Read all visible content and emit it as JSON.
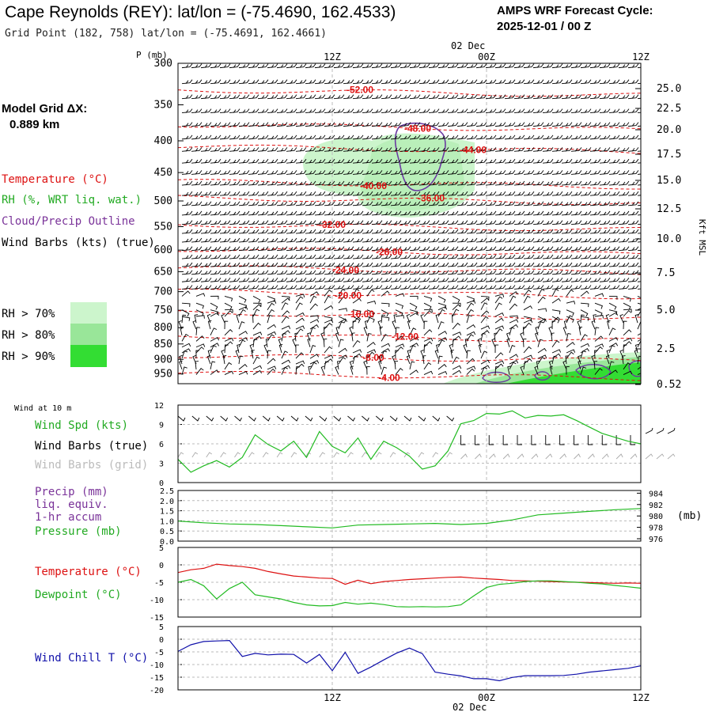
{
  "header": {
    "station_title": "Cape Reynolds (REY):  lat/lon = (-75.4690, 162.4533)",
    "grid_point": "Grid Point (182, 758) lat/lon = (-75.4691, 162.4661)",
    "forecast_title": "AMPS WRF Forecast Cycle:",
    "forecast_cycle": "2025-12-01 / 00  Z"
  },
  "left_panel": {
    "model_grid_label": "Model Grid ΔX:",
    "model_grid_value": "0.889 km",
    "legend": [
      {
        "label": "Temperature (°C)",
        "color": "#dd1111"
      },
      {
        "label": "RH (%, WRT liq. wat.)",
        "color": "#22aa22"
      },
      {
        "label": "Cloud/Precip Outline",
        "color": "#7a3399"
      },
      {
        "label": "Wind Barbs (kts) (true)",
        "color": "#000000"
      }
    ],
    "rh_legend": [
      {
        "label": "RH > 70%",
        "color": "#ccf5cc"
      },
      {
        "label": "RH > 80%",
        "color": "#99e699"
      },
      {
        "label": "RH > 90%",
        "color": "#33dd33"
      }
    ]
  },
  "colors": {
    "temperature": "#dd1111",
    "rh_fill": "#ccf5cc",
    "cloud_outline": "#6a3aa0",
    "wind_speed": "#22bb22",
    "pressure": "#22bb22",
    "dewpoint": "#22bb22",
    "wind_chill": "#1111aa",
    "grid_barbs": "#aaaaaa"
  },
  "chart_data": [
    {
      "type": "area",
      "name": "upper-air-cross-section",
      "pressure_label": "P (mb)",
      "pressure_levels": [
        300,
        350,
        400,
        450,
        500,
        550,
        600,
        650,
        700,
        750,
        800,
        850,
        900,
        950
      ],
      "height_label": "Kft MSL",
      "height_ticks": [
        "25.0",
        "22.5",
        "20.0",
        "17.5",
        "15.0",
        "12.5",
        "10.0",
        "7.5",
        "5.0",
        "2.5",
        "0.52"
      ],
      "time_labels": [
        "12Z",
        "00Z",
        "12Z"
      ],
      "date_label": "02 Dec",
      "isotherm_labels": [
        "-52.00",
        "-48.00",
        "-44.00",
        "-40.00",
        "-36.00",
        "-32.00",
        "-28.00",
        "-24.00",
        "-20.00",
        "-16.00",
        "-12.00",
        "-8.00",
        "-4.00"
      ],
      "isotherm_levels_mb": [
        334,
        380,
        412,
        469,
        498,
        550,
        603,
        645,
        705,
        763,
        830,
        895,
        955
      ]
    },
    {
      "type": "line",
      "name": "wind-10m",
      "title": "Wind at 10 m",
      "legend": [
        "Wind Spd (kts)",
        "Wind Barbs (true)",
        "Wind Barbs (grid)"
      ],
      "yticks": [
        12,
        9,
        6,
        3,
        0
      ],
      "ylim": [
        0,
        12
      ],
      "x_hours": [
        0,
        1,
        2,
        3,
        4,
        5,
        6,
        7,
        8,
        9,
        10,
        11,
        12,
        13,
        14,
        15,
        16,
        17,
        18,
        19,
        20,
        21,
        22,
        23,
        24,
        25,
        26,
        27,
        28,
        29,
        30,
        31,
        32,
        33,
        34,
        35,
        36
      ],
      "wind_speed_kts": [
        3.6,
        1.6,
        2.6,
        3.4,
        2.4,
        3.9,
        7.4,
        5.9,
        4.9,
        6.4,
        3.9,
        7.9,
        5.6,
        4.6,
        6.9,
        3.6,
        6.4,
        5.4,
        4.1,
        2.1,
        2.6,
        4.9,
        9.1,
        9.6,
        10.7,
        10.6,
        11.1,
        10.0,
        10.4,
        10.3,
        10.5,
        9.6,
        8.6,
        7.6,
        7.0,
        6.4,
        6.0
      ]
    },
    {
      "type": "line",
      "name": "precip-pressure",
      "legend": [
        "Precip (mm)",
        "liq. equiv.",
        "1-hr accum",
        "Pressure (mb)"
      ],
      "precip_ticks": [
        "2.5",
        "2.0",
        "1.5",
        "1.0",
        "0.5",
        "0.0"
      ],
      "pressure_ticks": [
        984,
        982,
        980,
        978,
        976
      ],
      "pressure_unit": "(mb)",
      "pressure_lim": [
        976,
        984
      ],
      "x_hours": [
        0,
        2,
        4,
        6,
        8,
        10,
        12,
        14,
        16,
        18,
        20,
        22,
        24,
        26,
        28,
        30,
        32,
        34,
        36
      ],
      "pressure_mb": [
        979.1,
        978.8,
        978.6,
        978.5,
        978.3,
        978.1,
        977.9,
        978.4,
        978.5,
        978.6,
        978.7,
        978.5,
        978.7,
        979.3,
        980.2,
        980.5,
        980.8,
        981.1,
        981.3
      ]
    },
    {
      "type": "line",
      "name": "temperature-dewpoint",
      "legend": [
        "Temperature (°C)",
        "Dewpoint (°C)"
      ],
      "yticks": [
        5,
        0,
        -5,
        -10,
        -15
      ],
      "ylim": [
        -15,
        5
      ],
      "x_hours": [
        0,
        1,
        2,
        3,
        4,
        5,
        6,
        7,
        8,
        9,
        10,
        11,
        12,
        13,
        14,
        15,
        16,
        17,
        18,
        19,
        20,
        21,
        22,
        23,
        24,
        25,
        26,
        27,
        28,
        29,
        30,
        31,
        32,
        33,
        34,
        35,
        36
      ],
      "temperature": [
        -2.2,
        -1.4,
        -1.0,
        0.2,
        -0.2,
        -0.5,
        -1.0,
        -1.9,
        -2.6,
        -3.2,
        -3.5,
        -3.8,
        -3.9,
        -5.6,
        -4.4,
        -5.4,
        -4.8,
        -4.5,
        -4.2,
        -4.0,
        -3.8,
        -3.6,
        -3.5,
        -3.8,
        -4.0,
        -4.2,
        -4.5,
        -4.6,
        -4.7,
        -4.8,
        -4.9,
        -5.0,
        -5.1,
        -5.2,
        -5.3,
        -5.2,
        -5.3
      ],
      "dewpoint": [
        -5.0,
        -4.2,
        -6.0,
        -9.8,
        -6.8,
        -5.0,
        -8.6,
        -9.2,
        -9.8,
        -10.8,
        -11.5,
        -11.8,
        -11.7,
        -10.8,
        -11.3,
        -11.0,
        -11.4,
        -12.0,
        -12.1,
        -12.0,
        -12.1,
        -12.0,
        -11.5,
        -8.9,
        -6.5,
        -5.6,
        -5.3,
        -4.8,
        -4.6,
        -4.6,
        -4.8,
        -5.0,
        -5.3,
        -5.5,
        -5.9,
        -6.3,
        -6.7
      ]
    },
    {
      "type": "line",
      "name": "wind-chill",
      "legend": [
        "Wind Chill T (°C)"
      ],
      "yticks": [
        5,
        0,
        -5,
        -10,
        -15,
        -20
      ],
      "ylim": [
        -20,
        5
      ],
      "x_hours": [
        0,
        1,
        2,
        3,
        4,
        5,
        6,
        7,
        8,
        9,
        10,
        11,
        12,
        13,
        14,
        15,
        16,
        17,
        18,
        19,
        20,
        21,
        22,
        23,
        24,
        25,
        26,
        27,
        28,
        29,
        30,
        31,
        32,
        33,
        34,
        35,
        36
      ],
      "wind_chill": [
        -4.8,
        -2.2,
        -0.9,
        -0.7,
        -0.5,
        -6.8,
        -5.6,
        -6.2,
        -5.9,
        -6.0,
        -9.4,
        -6.0,
        -12.4,
        -5.2,
        -13.5,
        -11.0,
        -8.2,
        -5.5,
        -3.5,
        -5.7,
        -13.0,
        -13.8,
        -14.5,
        -15.6,
        -15.6,
        -16.4,
        -15.1,
        -14.4,
        -14.4,
        -14.4,
        -14.3,
        -13.8,
        -13.0,
        -12.5,
        -12.0,
        -11.5,
        -10.5
      ]
    }
  ],
  "bottom_axis": {
    "time_labels": [
      "12Z",
      "00Z",
      "12Z"
    ],
    "date_label": "02 Dec"
  }
}
